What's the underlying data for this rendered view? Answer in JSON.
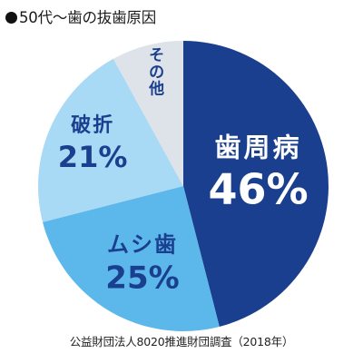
{
  "header": {
    "title": "50代〜歯の抜歯原因"
  },
  "chart_data": {
    "type": "pie",
    "title": "50代〜歯の抜歯原因",
    "categories": [
      "歯周病",
      "ムシ歯",
      "破折",
      "その他"
    ],
    "values": [
      46,
      25,
      21,
      8
    ],
    "labels": [
      "歯周病",
      "ムシ歯",
      "破折",
      "その他"
    ],
    "value_labels": [
      "46%",
      "25%",
      "21%",
      ""
    ],
    "colors": [
      "#1b3f8f",
      "#5cb8ea",
      "#a8d9f5",
      "#dde3e8"
    ],
    "label_colors": [
      "#ffffff",
      "#1b3f8f",
      "#1b3f8f",
      "#1b3f8f"
    ],
    "start_angle_deg": 0,
    "direction": "clockwise",
    "legend": "none"
  },
  "footer": {
    "source": "公益財団法人8020推進財団調査（2018年）"
  }
}
